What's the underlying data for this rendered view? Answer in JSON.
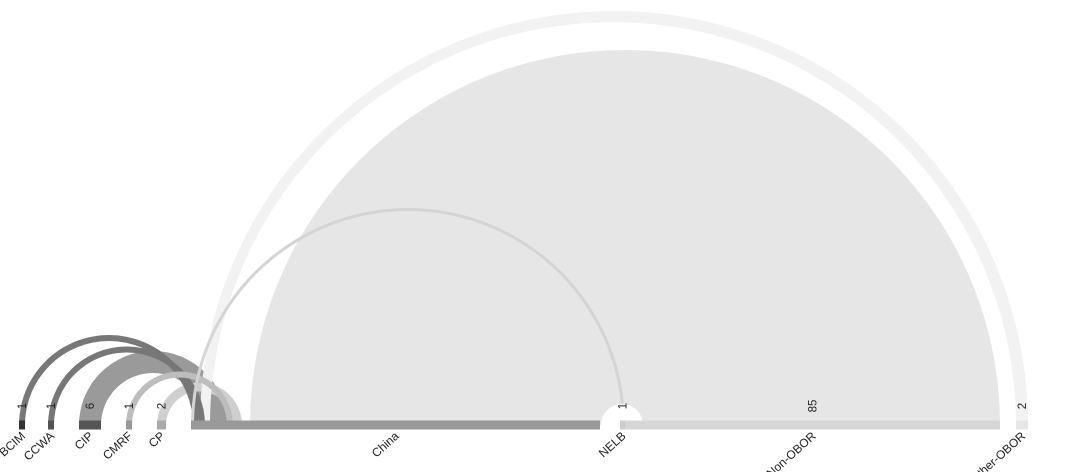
{
  "chart_data": {
    "type": "arc",
    "nodes": [
      {
        "id": "BCIM",
        "label": "BCIM",
        "count": "1",
        "value": 1,
        "color": "#333333"
      },
      {
        "id": "CCWA",
        "label": "CCWA",
        "count": "1",
        "value": 1,
        "color": "#555555"
      },
      {
        "id": "CIP",
        "label": "CIP",
        "count": "6",
        "value": 6,
        "color": "#555555"
      },
      {
        "id": "CMRF",
        "label": "CMRF",
        "count": "1",
        "value": 1,
        "color": "#999999"
      },
      {
        "id": "CP",
        "label": "CP",
        "count": "2",
        "value": 2,
        "color": "#aaaaaa"
      },
      {
        "id": "China",
        "label": "China",
        "count": "",
        "value": 96,
        "color": "#999999"
      },
      {
        "id": "NELB",
        "label": "NELB",
        "count": "1",
        "value": 1,
        "color": "#cccccc"
      },
      {
        "id": "Non-OBOR",
        "label": "Non-OBOR",
        "count": "85",
        "value": 85,
        "color": "#d6d6d6"
      },
      {
        "id": "Other-OBOR",
        "label": "Other-OBOR",
        "count": "2",
        "value": 2,
        "color": "#e6e6e6"
      }
    ],
    "links": [
      {
        "source": "BCIM",
        "target": "China",
        "value": 1,
        "color": "#777777"
      },
      {
        "source": "CCWA",
        "target": "China",
        "value": 1,
        "color": "#777777"
      },
      {
        "source": "CIP",
        "target": "China",
        "value": 6,
        "color": "#9a9a9a"
      },
      {
        "source": "CMRF",
        "target": "China",
        "value": 1,
        "color": "#bdbdbd"
      },
      {
        "source": "CP",
        "target": "China",
        "value": 2,
        "color": "#cfcfcf"
      },
      {
        "source": "China",
        "target": "NELB",
        "value": 1,
        "color": "#d4d4d4"
      },
      {
        "source": "China",
        "target": "Non-OBOR",
        "value": 85,
        "color": "#e6e6e6"
      },
      {
        "source": "China",
        "target": "Other-OBOR",
        "value": 2,
        "color": "#f2f2f2"
      }
    ]
  }
}
